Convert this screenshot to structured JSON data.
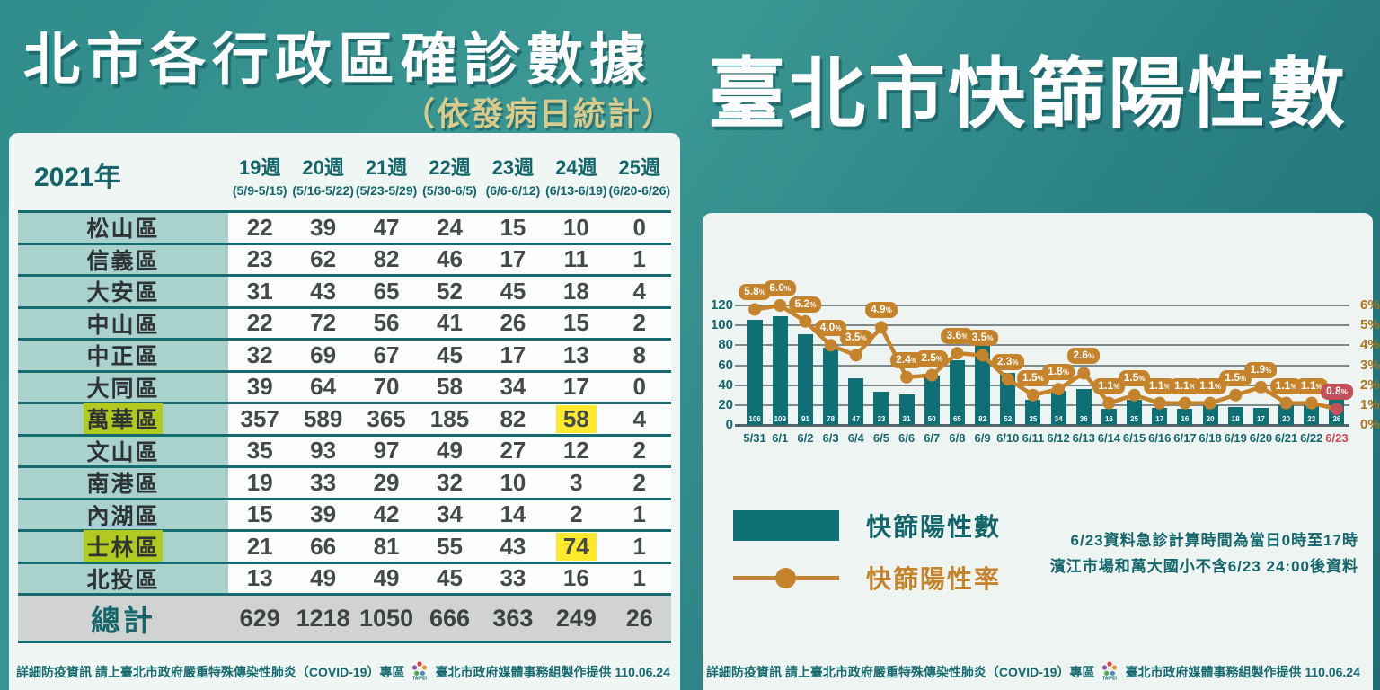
{
  "colors": {
    "background_teal": "#2f8c8a",
    "panel_light": "#f0f6f4",
    "bar_teal": "#0e6f74",
    "line_orange": "#c5842c",
    "alert_red": "#c55059",
    "highlight_yellow": "#ffe92c",
    "highlight_green": "#b2ca1f",
    "table_label_bg": "#a9d2cc",
    "row_border_teal": "#156b70",
    "subtitle_khaki": "#d9cb8c"
  },
  "left_panel": {
    "title": "北市各行政區確診數據",
    "subtitle": "（依發病日統計）",
    "table": {
      "year_label": "2021年",
      "weeks": [
        {
          "week": "19週",
          "range": "(5/9-5/15)"
        },
        {
          "week": "20週",
          "range": "(5/16-5/22)"
        },
        {
          "week": "21週",
          "range": "(5/23-5/29)"
        },
        {
          "week": "22週",
          "range": "(5/30-6/5)"
        },
        {
          "week": "23週",
          "range": "(6/6-6/12)"
        },
        {
          "week": "24週",
          "range": "(6/13-6/19)"
        },
        {
          "week": "25週",
          "range": "(6/20-6/26)"
        }
      ],
      "rows": [
        {
          "district": "松山區",
          "values": [
            22,
            39,
            47,
            24,
            15,
            10,
            0
          ],
          "highlight_district": false,
          "highlight_col": null
        },
        {
          "district": "信義區",
          "values": [
            23,
            62,
            82,
            46,
            17,
            11,
            1
          ],
          "highlight_district": false,
          "highlight_col": null
        },
        {
          "district": "大安區",
          "values": [
            31,
            43,
            65,
            52,
            45,
            18,
            4
          ],
          "highlight_district": false,
          "highlight_col": null
        },
        {
          "district": "中山區",
          "values": [
            22,
            72,
            56,
            41,
            26,
            15,
            2
          ],
          "highlight_district": false,
          "highlight_col": null
        },
        {
          "district": "中正區",
          "values": [
            32,
            69,
            67,
            45,
            17,
            13,
            8
          ],
          "highlight_district": false,
          "highlight_col": null
        },
        {
          "district": "大同區",
          "values": [
            39,
            64,
            70,
            58,
            34,
            17,
            0
          ],
          "highlight_district": false,
          "highlight_col": null
        },
        {
          "district": "萬華區",
          "values": [
            357,
            589,
            365,
            185,
            82,
            58,
            4
          ],
          "highlight_district": true,
          "highlight_col": 5
        },
        {
          "district": "文山區",
          "values": [
            35,
            93,
            97,
            49,
            27,
            12,
            2
          ],
          "highlight_district": false,
          "highlight_col": null
        },
        {
          "district": "南港區",
          "values": [
            19,
            33,
            29,
            32,
            10,
            3,
            2
          ],
          "highlight_district": false,
          "highlight_col": null
        },
        {
          "district": "內湖區",
          "values": [
            15,
            39,
            42,
            34,
            14,
            2,
            1
          ],
          "highlight_district": false,
          "highlight_col": null
        },
        {
          "district": "士林區",
          "values": [
            21,
            66,
            81,
            55,
            43,
            74,
            1
          ],
          "highlight_district": true,
          "highlight_col": 5
        },
        {
          "district": "北投區",
          "values": [
            13,
            49,
            49,
            45,
            33,
            16,
            1
          ],
          "highlight_district": false,
          "highlight_col": null
        }
      ],
      "total": {
        "label": "總計",
        "values": [
          629,
          1218,
          1050,
          666,
          363,
          249,
          26
        ]
      }
    }
  },
  "right_panel": {
    "title": "臺北市快篩陽性數",
    "legend": {
      "bar_label": "快篩陽性數",
      "line_label": "快篩陽性率"
    },
    "notes": {
      "line1": "6/23資料急診計算時間為當日0時至17時",
      "line2": "濱江市場和萬大國小不含6/23 24:00後資料"
    }
  },
  "chart_data": {
    "type": "bar",
    "title": "臺北市快篩陽性數",
    "categories": [
      "5/31",
      "6/1",
      "6/2",
      "6/3",
      "6/4",
      "6/5",
      "6/6",
      "6/7",
      "6/8",
      "6/9",
      "6/10",
      "6/11",
      "6/12",
      "6/13",
      "6/14",
      "6/15",
      "6/16",
      "6/17",
      "6/18",
      "6/19",
      "6/20",
      "6/21",
      "6/22",
      "6/23"
    ],
    "series": [
      {
        "name": "快篩陽性數",
        "type": "bar",
        "values": [
          106,
          109,
          91,
          78,
          47,
          33,
          31,
          50,
          65,
          82,
          52,
          25,
          34,
          36,
          16,
          25,
          17,
          16,
          20,
          18,
          17,
          20,
          23,
          26
        ]
      },
      {
        "name": "快篩陽性率",
        "type": "line",
        "unit": "%",
        "values": [
          5.8,
          6.0,
          5.2,
          4.0,
          3.5,
          4.9,
          2.4,
          2.5,
          3.6,
          3.5,
          2.3,
          1.5,
          1.8,
          2.6,
          1.1,
          1.5,
          1.1,
          1.1,
          1.1,
          1.5,
          1.9,
          1.1,
          1.1,
          0.8
        ]
      }
    ],
    "left_axis": {
      "ticks": [
        0,
        20,
        40,
        60,
        80,
        100,
        120
      ],
      "max": 120
    },
    "right_axis": {
      "ticks": [
        "0%",
        "1%",
        "2%",
        "3%",
        "4%",
        "5%",
        "6%"
      ],
      "max": 6
    },
    "grid": true,
    "legend_position": "bottom-left",
    "last_point_highlighted_red": true
  },
  "footer": {
    "info": "詳細防疫資訊 請上臺北市政府嚴重特殊傳染性肺炎（COVID-19）專區",
    "credit": "臺北市政府媒體事務組製作提供 110.06.24",
    "logo_name": "taipei-city-logo"
  }
}
